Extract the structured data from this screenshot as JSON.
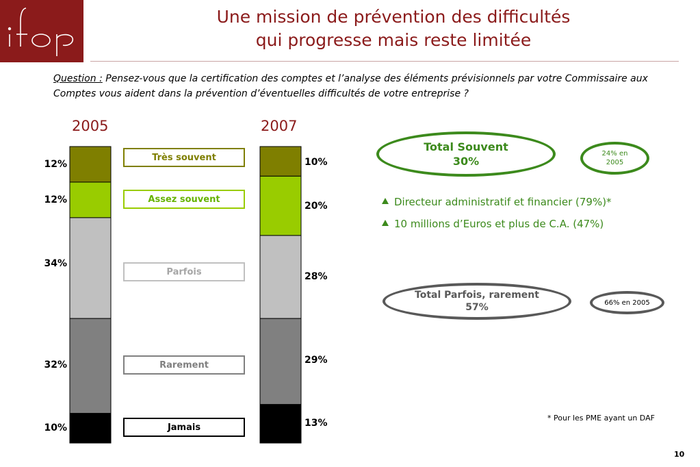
{
  "logo": {
    "text": "ifop"
  },
  "title": {
    "line1": "Une mission de prévention des difficultés",
    "line2": "qui progresse mais reste limitée"
  },
  "question": {
    "label": "Question :",
    "text": "Pensez-vous que la certification des comptes et l’analyse des éléments prévisionnels par votre Commissaire aux Comptes vous aident dans la prévention d’éventuelles difficultés de votre entreprise ?"
  },
  "chart_data": {
    "type": "bar",
    "stacked": true,
    "categories": [
      "2005",
      "2007"
    ],
    "series": [
      {
        "name": "Très souvent",
        "values": [
          12,
          10
        ],
        "color": "#7f7f00",
        "label_color": "#7f7f00"
      },
      {
        "name": "Assez souvent",
        "values": [
          12,
          20
        ],
        "color": "#99cc00",
        "label_color": "#66b300"
      },
      {
        "name": "Parfois",
        "values": [
          34,
          28
        ],
        "color": "#c0c0c0",
        "label_color": "#a6a6a6"
      },
      {
        "name": "Rarement",
        "values": [
          32,
          29
        ],
        "color": "#808080",
        "label_color": "#808080"
      },
      {
        "name": "Jamais",
        "values": [
          10,
          13
        ],
        "color": "#000000",
        "label_color": "#000000"
      }
    ],
    "value_labels": {
      "2005": [
        "12%",
        "12%",
        "34%",
        "32%",
        "10%"
      ],
      "2007": [
        "10%",
        "20%",
        "28%",
        "29%",
        "13%"
      ]
    }
  },
  "summary": {
    "souvent": {
      "label": "Total Souvent",
      "value": "30%",
      "color": "#3c8a1c"
    },
    "souvent_prev": {
      "label": "24% en 2005"
    },
    "parfois": {
      "label": "Total Parfois, rarement",
      "value": "57%",
      "color": "#595959"
    },
    "parfois_prev": {
      "label": "66% en 2005"
    }
  },
  "bullets": [
    "Directeur administratif et financier (79%)*",
    "10 millions d’Euros et plus de C.A. (47%)"
  ],
  "footnote": "* Pour les PME ayant un DAF",
  "page_number": "10"
}
